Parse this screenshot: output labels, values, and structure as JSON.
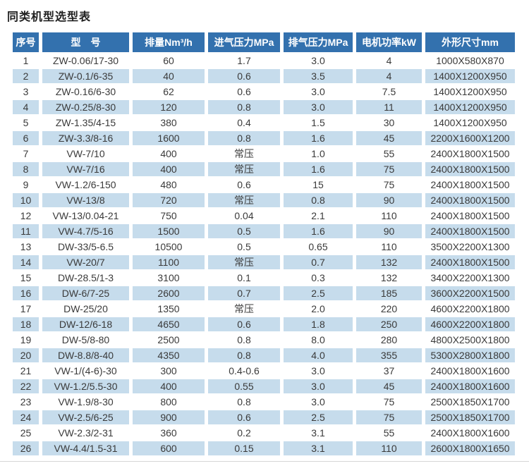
{
  "page_title": "同类机型选型表",
  "colors": {
    "header_bg": "#3371ae",
    "header_text": "#ffffff",
    "row_alt_bg": "#c6dcec",
    "row_bg": "#ffffff",
    "body_text": "#3a3a3a"
  },
  "chart_data": {
    "type": "table",
    "title": "同类机型选型表",
    "columns": [
      "序号",
      "型　号",
      "排量Nm³/h",
      "进气压力MPa",
      "排气压力MPa",
      "电机功率kW",
      "外形尺寸mm"
    ],
    "rows": [
      [
        "1",
        "ZW-0.06/17-30",
        "60",
        "1.7",
        "3.0",
        "4",
        "1000X580X870"
      ],
      [
        "2",
        "ZW-0.1/6-35",
        "40",
        "0.6",
        "3.5",
        "4",
        "1400X1200X950"
      ],
      [
        "3",
        "ZW-0.16/6-30",
        "62",
        "0.6",
        "3.0",
        "7.5",
        "1400X1200X950"
      ],
      [
        "4",
        "ZW-0.25/8-30",
        "120",
        "0.8",
        "3.0",
        "11",
        "1400X1200X950"
      ],
      [
        "5",
        "ZW-1.35/4-15",
        "380",
        "0.4",
        "1.5",
        "30",
        "1400X1200X950"
      ],
      [
        "6",
        "ZW-3.3/8-16",
        "1600",
        "0.8",
        "1.6",
        "45",
        "2200X1600X1200"
      ],
      [
        "7",
        "VW-7/10",
        "400",
        "常压",
        "1.0",
        "55",
        "2400X1800X1500"
      ],
      [
        "8",
        "VW-7/16",
        "400",
        "常压",
        "1.6",
        "75",
        "2400X1800X1500"
      ],
      [
        "9",
        "VW-1.2/6-150",
        "480",
        "0.6",
        "15",
        "75",
        "2400X1800X1500"
      ],
      [
        "10",
        "VW-13/8",
        "720",
        "常压",
        "0.8",
        "90",
        "2400X1800X1500"
      ],
      [
        "12",
        "VW-13/0.04-21",
        "750",
        "0.04",
        "2.1",
        "110",
        "2400X1800X1500"
      ],
      [
        "11",
        "VW-4.7/5-16",
        "1500",
        "0.5",
        "1.6",
        "90",
        "2400X1800X1500"
      ],
      [
        "13",
        "DW-33/5-6.5",
        "10500",
        "0.5",
        "0.65",
        "110",
        "3500X2200X1300"
      ],
      [
        "14",
        "VW-20/7",
        "1100",
        "常压",
        "0.7",
        "132",
        "2400X1800X1500"
      ],
      [
        "15",
        "DW-28.5/1-3",
        "3100",
        "0.1",
        "0.3",
        "132",
        "3400X2200X1300"
      ],
      [
        "16",
        "DW-6/7-25",
        "2600",
        "0.7",
        "2.5",
        "185",
        "3600X2200X1500"
      ],
      [
        "17",
        "DW-25/20",
        "1350",
        "常压",
        "2.0",
        "220",
        "4600X2200X1800"
      ],
      [
        "18",
        "DW-12/6-18",
        "4650",
        "0.6",
        "1.8",
        "250",
        "4600X2200X1800"
      ],
      [
        "19",
        "DW-5/8-80",
        "2500",
        "0.8",
        "8.0",
        "280",
        "4800X2500X1800"
      ],
      [
        "20",
        "DW-8.8/8-40",
        "4350",
        "0.8",
        "4.0",
        "355",
        "5300X2800X1800"
      ],
      [
        "21",
        "VW-1/(4-6)-30",
        "300",
        "0.4-0.6",
        "3.0",
        "37",
        "2400X1800X1600"
      ],
      [
        "22",
        "VW-1.2/5.5-30",
        "400",
        "0.55",
        "3.0",
        "45",
        "2400X1800X1600"
      ],
      [
        "23",
        "VW-1.9/8-30",
        "800",
        "0.8",
        "3.0",
        "75",
        "2500X1850X1700"
      ],
      [
        "24",
        "VW-2.5/6-25",
        "900",
        "0.6",
        "2.5",
        "75",
        "2500X1850X1700"
      ],
      [
        "25",
        "VW-2.3/2-31",
        "360",
        "0.2",
        "3.1",
        "55",
        "2400X1800X1600"
      ],
      [
        "26",
        "VW-4.4/1.5-31",
        "600",
        "0.15",
        "3.1",
        "110",
        "2600X1800X1650"
      ]
    ]
  }
}
